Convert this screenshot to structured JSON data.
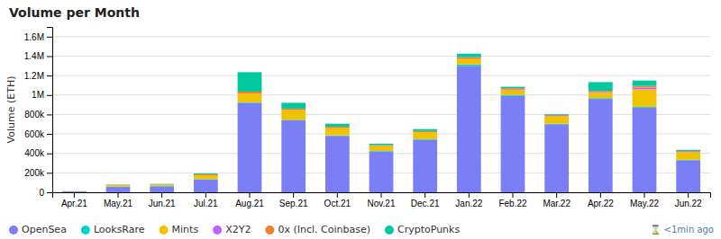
{
  "chart_data": {
    "type": "bar",
    "stacked": true,
    "title": "Volume per Month",
    "y_label": "Volume (ETH)",
    "annotation": "⌛ <1min ago",
    "categories": [
      "Apr.21",
      "May.21",
      "Jun.21",
      "Jul.21",
      "Aug.21",
      "Sep.21",
      "Oct.21",
      "Nov.21",
      "Dec.21",
      "Jan.22",
      "Feb.22",
      "Mar.22",
      "Apr.22",
      "May.22",
      "Jun.22"
    ],
    "series": [
      {
        "name": "OpenSea",
        "color": "#7b7ff5",
        "values": [
          8000,
          55000,
          60000,
          130000,
          920000,
          740000,
          580000,
          420000,
          540000,
          1300000,
          990000,
          700000,
          960000,
          870000,
          330000
        ]
      },
      {
        "name": "LooksRare",
        "color": "#00d2d2",
        "values": [
          1000,
          5000,
          5000,
          5000,
          5000,
          5000,
          5000,
          5000,
          5000,
          15000,
          10000,
          5000,
          8000,
          8000,
          5000
        ]
      },
      {
        "name": "Mints",
        "color": "#f0c300",
        "values": [
          2000,
          15000,
          15000,
          40000,
          90000,
          100000,
          75000,
          50000,
          70000,
          55000,
          50000,
          75000,
          55000,
          180000,
          75000
        ]
      },
      {
        "name": "X2Y2",
        "color": "#c060ff",
        "values": [
          0,
          0,
          0,
          0,
          0,
          0,
          0,
          0,
          0,
          0,
          5000,
          4000,
          8000,
          18000,
          4000
        ]
      },
      {
        "name": "0x (Incl. Coinbase)",
        "color": "#f08030",
        "values": [
          500,
          3000,
          4000,
          10000,
          20000,
          15000,
          15000,
          10000,
          15000,
          20000,
          15000,
          10000,
          12000,
          18000,
          10000
        ]
      },
      {
        "name": "CryptoPunks",
        "color": "#00c8a0",
        "values": [
          500,
          2000,
          3000,
          8000,
          200000,
          60000,
          30000,
          15000,
          20000,
          35000,
          15000,
          8000,
          90000,
          55000,
          12000
        ]
      }
    ],
    "ylim": [
      0,
      1700000
    ],
    "yticks": [
      0,
      {
        "value": 200000,
        "label": "200k"
      },
      {
        "value": 400000,
        "label": "400k"
      },
      {
        "value": 600000,
        "label": "600k"
      },
      {
        "value": 800000,
        "label": "800k"
      },
      {
        "value": 1000000,
        "label": "1M"
      },
      {
        "value": 1200000,
        "label": "1.2M"
      },
      {
        "value": 1400000,
        "label": "1.4M"
      },
      {
        "value": 1600000,
        "label": "1.6M"
      }
    ],
    "grid": true,
    "legend": "lower left"
  }
}
